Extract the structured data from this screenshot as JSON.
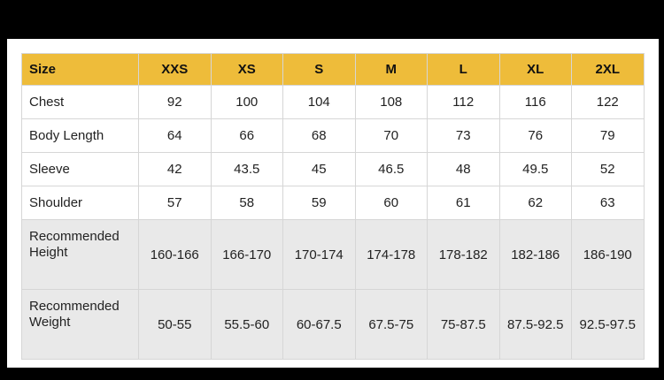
{
  "table": {
    "header_label": "Size",
    "sizes": [
      "XXS",
      "XS",
      "S",
      "M",
      "L",
      "XL",
      "2XL"
    ],
    "rows": [
      {
        "label": "Chest",
        "values": [
          "92",
          "100",
          "104",
          "108",
          "112",
          "116",
          "122"
        ]
      },
      {
        "label": "Body Length",
        "values": [
          "64",
          "66",
          "68",
          "70",
          "73",
          "76",
          "79"
        ]
      },
      {
        "label": "Sleeve",
        "values": [
          "42",
          "43.5",
          "45",
          "46.5",
          "48",
          "49.5",
          "52"
        ]
      },
      {
        "label": "Shoulder",
        "values": [
          "57",
          "58",
          "59",
          "60",
          "61",
          "62",
          "63"
        ]
      },
      {
        "label": "Recommended Height",
        "values": [
          "160-166",
          "166-170",
          "170-174",
          "174-178",
          "178-182",
          "182-186",
          "186-190"
        ]
      },
      {
        "label": "Recommended Weight",
        "values": [
          "50-55",
          "55.5-60",
          "60-67.5",
          "67.5-75",
          "75-87.5",
          "87.5-92.5",
          "92.5-97.5"
        ]
      }
    ]
  },
  "colors": {
    "header_bg": "#eebc3a",
    "shaded_row_bg": "#e9e9e9",
    "page_bg": "#000000"
  }
}
